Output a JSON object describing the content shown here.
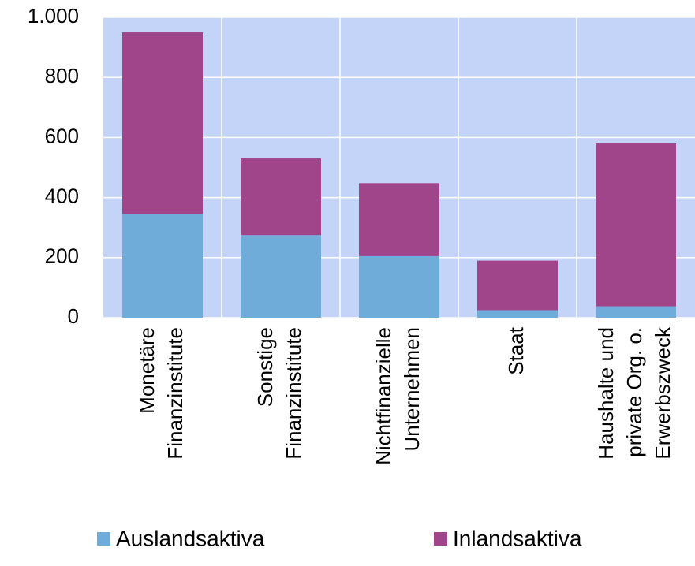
{
  "chart_data": {
    "type": "stacked_bar",
    "categories": [
      [
        "Monetäre",
        "Finanzinstitute"
      ],
      [
        "Sonstige",
        "Finanzinstitute"
      ],
      [
        "Nichtfinanzielle",
        "Unternehmen"
      ],
      [
        "Staat"
      ],
      [
        "Haushalte und",
        "private Org. o.",
        "Erwerbszweck"
      ]
    ],
    "series": [
      {
        "name": "Auslandsaktiva",
        "color": "#70acda",
        "values": [
          345,
          275,
          205,
          25,
          38
        ]
      },
      {
        "name": "Inlandsaktiva",
        "color": "#a1458a",
        "values": [
          605,
          255,
          243,
          165,
          542
        ]
      }
    ],
    "ylim": [
      0,
      1000
    ],
    "yticks": [
      0,
      200,
      400,
      600,
      800,
      {
        "value": 1000,
        "label": "1.000"
      }
    ],
    "grid": true,
    "legend": "bottom"
  }
}
